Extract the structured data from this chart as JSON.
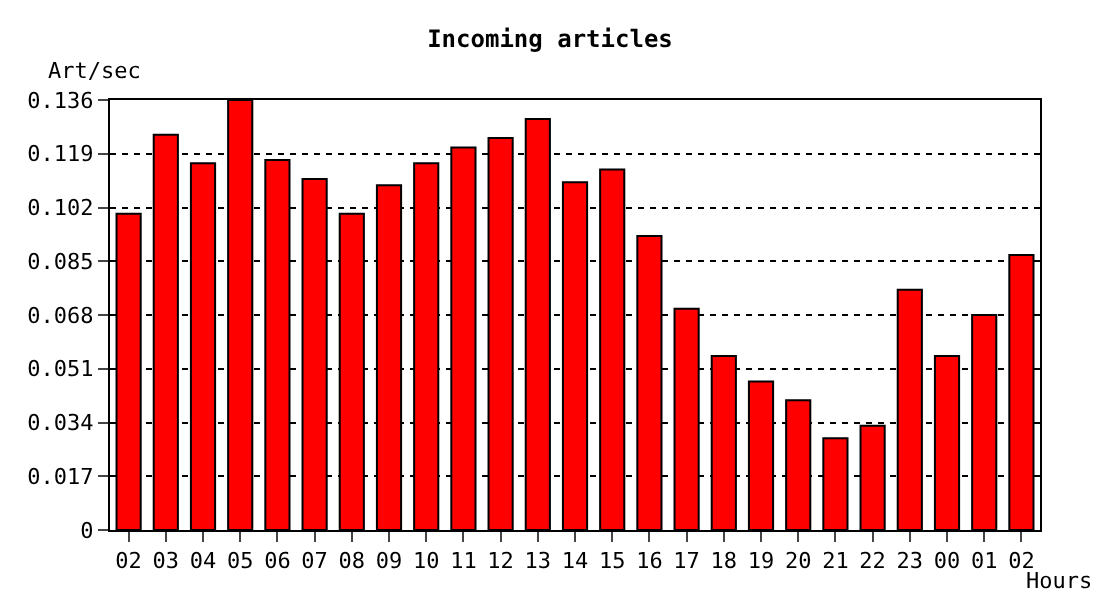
{
  "chart_data": {
    "type": "bar",
    "title": "Incoming articles",
    "xlabel": "Hours",
    "ylabel": "Art/sec",
    "categories": [
      "02",
      "03",
      "04",
      "05",
      "06",
      "07",
      "08",
      "09",
      "10",
      "11",
      "12",
      "13",
      "14",
      "15",
      "16",
      "17",
      "18",
      "19",
      "20",
      "21",
      "22",
      "23",
      "00",
      "01",
      "02"
    ],
    "values": [
      0.1,
      0.125,
      0.116,
      0.136,
      0.117,
      0.111,
      0.1,
      0.109,
      0.116,
      0.121,
      0.124,
      0.13,
      0.11,
      0.114,
      0.093,
      0.07,
      0.055,
      0.047,
      0.041,
      0.029,
      0.033,
      0.076,
      0.055,
      0.068,
      0.087
    ],
    "color": "#ff0000",
    "ylim": [
      0,
      0.136
    ],
    "yticks": [
      0,
      0.017,
      0.034,
      0.051,
      0.068,
      0.085,
      0.102,
      0.119,
      0.136
    ],
    "grid": "y"
  }
}
